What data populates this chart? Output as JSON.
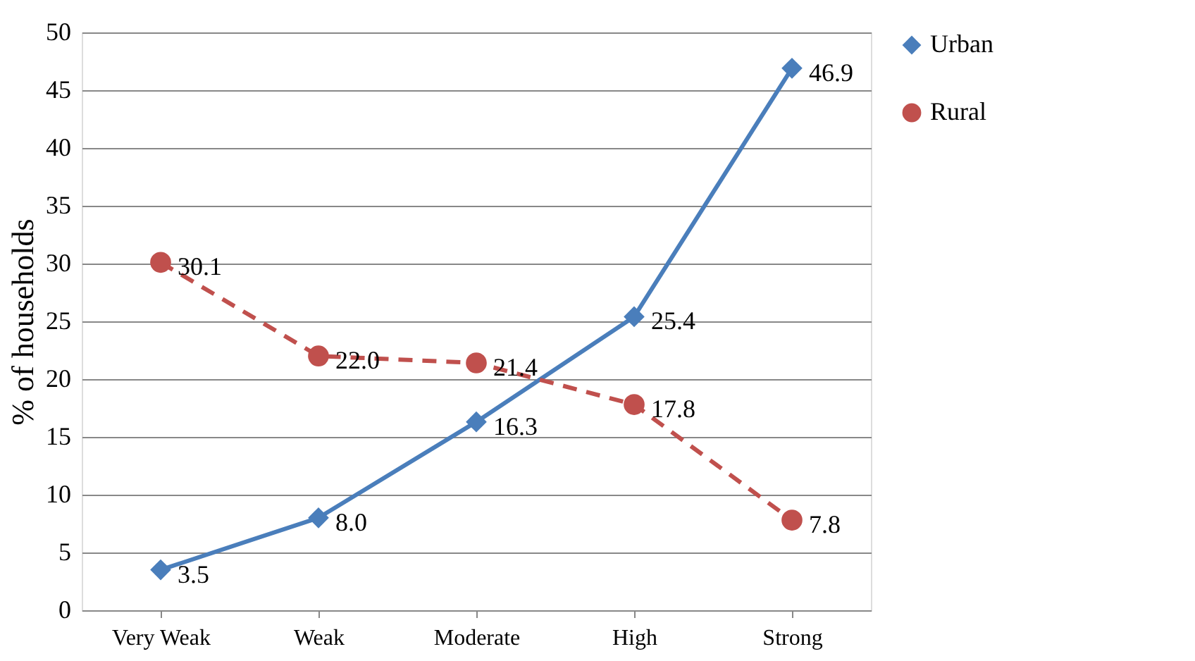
{
  "chart_data": {
    "type": "line",
    "ylabel": "% of households",
    "categories": [
      "Very Weak",
      "Weak",
      "Moderate",
      "High",
      "Strong"
    ],
    "series": [
      {
        "name": "Urban",
        "color": "#4a7ebb",
        "values": [
          3.5,
          8.0,
          16.3,
          25.4,
          46.9
        ],
        "value_labels": [
          "3.5",
          "8.0",
          "16.3",
          "25.4",
          "46.9"
        ],
        "marker": "diamond",
        "line_style": "solid"
      },
      {
        "name": "Rural",
        "color": "#c0504d",
        "values": [
          30.1,
          22.0,
          21.4,
          17.8,
          7.8
        ],
        "value_labels": [
          "30.1",
          "22.0",
          "21.4",
          "17.8",
          "7.8"
        ],
        "marker": "circle",
        "line_style": "dashed"
      }
    ],
    "ylim": [
      0,
      50
    ],
    "yticks": [
      0,
      5,
      10,
      15,
      20,
      25,
      30,
      35,
      40,
      45,
      50
    ],
    "grid": "y",
    "legend": "right"
  }
}
